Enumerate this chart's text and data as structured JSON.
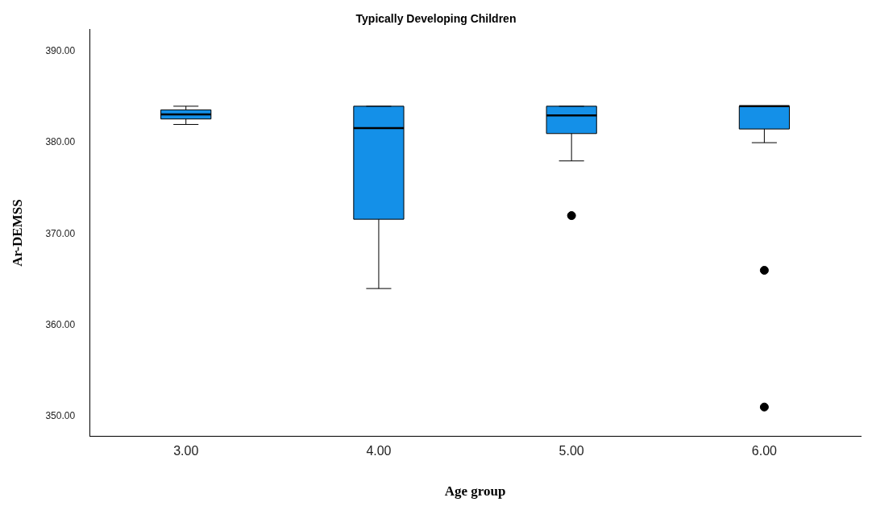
{
  "chart_data": {
    "type": "box",
    "title": "Typically Developing Children",
    "xlabel": "Age group",
    "ylabel": "Ar-DEMSS",
    "categories": [
      "3.00",
      "4.00",
      "5.00",
      "6.00"
    ],
    "series": [
      {
        "color": "#1490e8",
        "boxes": [
          {
            "low": 382,
            "q1": 382.6,
            "median": 383.1,
            "q3": 383.6,
            "high": 384
          },
          {
            "low": 364,
            "q1": 371.6,
            "median": 381.6,
            "q3": 384,
            "high": 384
          },
          {
            "low": 378,
            "q1": 381,
            "median": 383,
            "q3": 384,
            "high": 384,
            "outliers": [
              372
            ]
          },
          {
            "low": 380,
            "q1": 381.5,
            "median": 384,
            "q3": 384,
            "high": 384,
            "outliers": [
              366,
              351
            ]
          }
        ]
      }
    ],
    "ylim": [
      347.8,
      392.4
    ],
    "yticks": [
      {
        "value": 350,
        "label": "350.00"
      },
      {
        "value": 360,
        "label": "360.00"
      },
      {
        "value": 370,
        "label": "370.00"
      },
      {
        "value": 380,
        "label": "380.00"
      },
      {
        "value": 390,
        "label": "390.00"
      }
    ],
    "grid": false,
    "legend": false
  }
}
